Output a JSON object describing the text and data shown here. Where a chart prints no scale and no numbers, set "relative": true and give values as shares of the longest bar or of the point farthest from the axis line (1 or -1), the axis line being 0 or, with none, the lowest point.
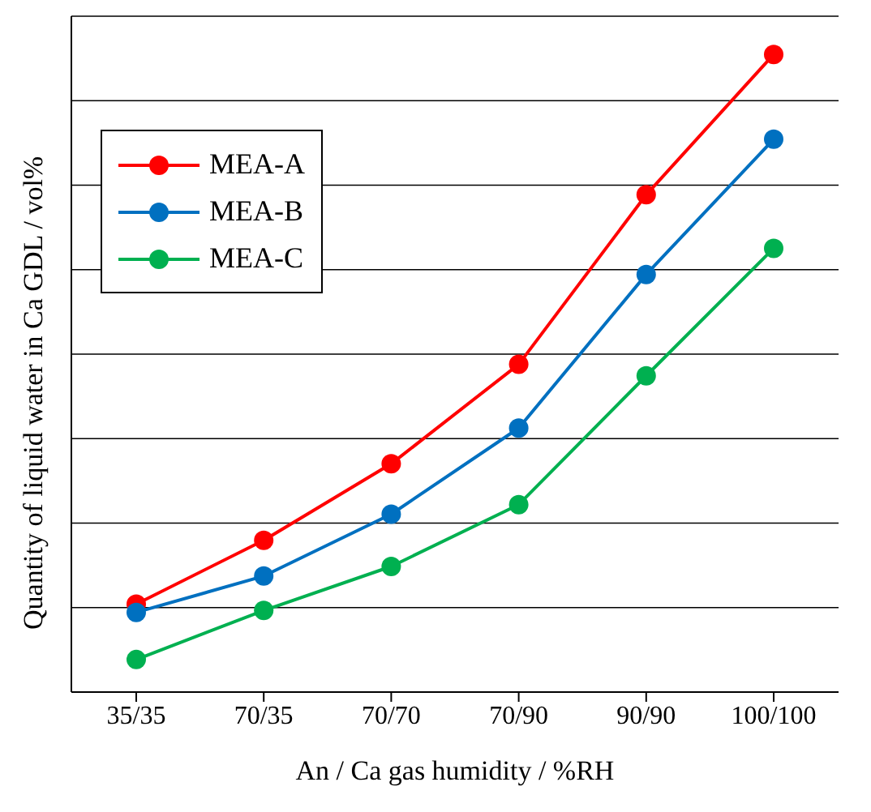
{
  "chart_data": {
    "type": "line",
    "xlabel": "An / Ca gas humidity / %RH",
    "ylabel": "Quantity of liquid water in Ca GDL / vol%",
    "categories": [
      "35/35",
      "70/35",
      "70/70",
      "70/90",
      "90/90",
      "100/100"
    ],
    "relative": true,
    "grid": "y",
    "legend": "top left",
    "marker": "circle",
    "line_style": "solid",
    "series": [
      {
        "name": "MEA-A",
        "color": "#ff0000",
        "values": [
          0.138,
          0.238,
          0.358,
          0.514,
          0.78,
          1
        ]
      },
      {
        "name": "MEA-B",
        "color": "#0070c0",
        "values": [
          0.125,
          0.182,
          0.279,
          0.414,
          0.655,
          0.867
        ]
      },
      {
        "name": "MEA-C",
        "color": "#00b050",
        "values": [
          0.051,
          0.128,
          0.197,
          0.294,
          0.496,
          0.696
        ]
      }
    ]
  }
}
